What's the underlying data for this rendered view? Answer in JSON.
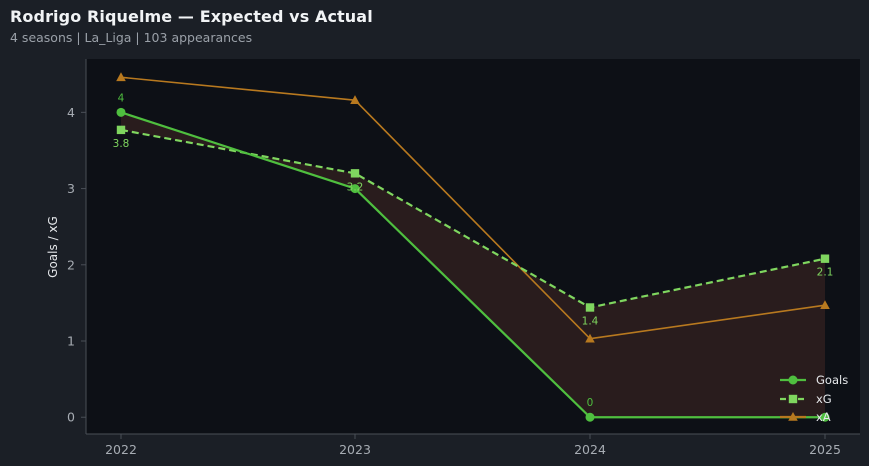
{
  "header": {
    "title": "Rodrigo Riquelme — Expected vs Actual",
    "subtitle": "4 seasons | La_Liga | 103 appearances"
  },
  "colors": {
    "background": "#1b1f26",
    "plot_bg": "#0d1016",
    "goals": "#4fbf3f",
    "xg": "#7fd65f",
    "xa": "#b8791f",
    "fill": "#2f1e1e"
  },
  "chart_data": {
    "type": "line",
    "categories": [
      "2022",
      "2023",
      "2024",
      "2025"
    ],
    "series": [
      {
        "name": "Goals",
        "values": [
          4,
          3,
          0,
          0
        ],
        "marker": "circle",
        "style": "solid",
        "labels": [
          "4",
          "",
          "0",
          ""
        ]
      },
      {
        "name": "xG",
        "values": [
          3.77,
          3.2,
          1.44,
          2.08
        ],
        "marker": "square",
        "style": "dashed",
        "labels": [
          "3.8",
          "3.2",
          "1.4",
          "2.1"
        ]
      },
      {
        "name": "xA",
        "values": [
          4.46,
          4.16,
          1.03,
          1.47
        ],
        "marker": "triangle",
        "style": "solid",
        "labels": []
      }
    ],
    "ylabel": "Goals / xG",
    "xlabel": "",
    "ylim": [
      -0.22,
      4.7
    ],
    "yticks": [
      0,
      1,
      2,
      3,
      4
    ],
    "grid": false,
    "legend_position": "lower-right",
    "shade_between": [
      "Goals",
      "xG"
    ]
  }
}
